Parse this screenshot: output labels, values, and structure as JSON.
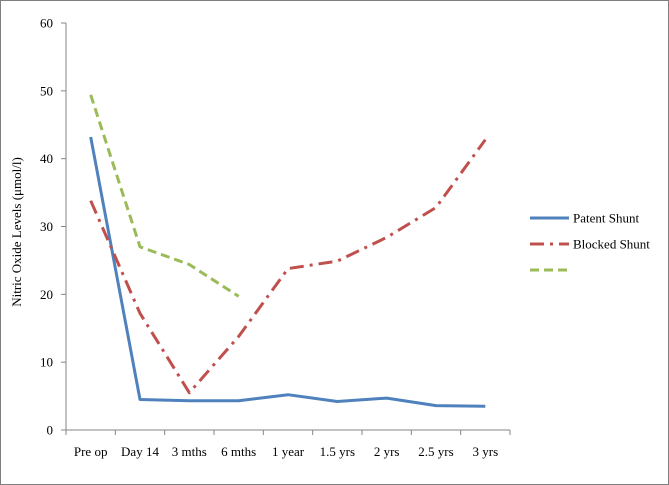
{
  "chart_data": {
    "type": "line",
    "title": "",
    "xlabel": "",
    "ylabel": "Nitric Oxide Levels (μmol/l)",
    "ylim": [
      0,
      60
    ],
    "y_ticks": [
      0,
      10,
      20,
      30,
      40,
      50,
      60
    ],
    "grid": false,
    "legend_position": "right",
    "categories": [
      "Pre op",
      "Day 14",
      "3 mths",
      "6 mths",
      "1 year",
      "1.5 yrs",
      "2 yrs",
      "2.5 yrs",
      "3 yrs"
    ],
    "series": [
      {
        "name": "Patent Shunt",
        "color": "#4f81bd",
        "style": "solid",
        "values": [
          43.2,
          4.5,
          4.3,
          4.3,
          5.2,
          4.2,
          4.7,
          3.6,
          3.5
        ]
      },
      {
        "name": "Blocked Shunt",
        "color": "#c0504d",
        "style": "dash-dot",
        "values": [
          33.8,
          17.2,
          5.5,
          13.8,
          23.8,
          24.9,
          28.4,
          32.8,
          42.8
        ]
      },
      {
        "name": "",
        "color": "#9bbb59",
        "style": "dashed",
        "values": [
          49.4,
          27.0,
          24.4,
          19.7,
          null,
          null,
          null,
          null,
          null
        ]
      }
    ]
  }
}
